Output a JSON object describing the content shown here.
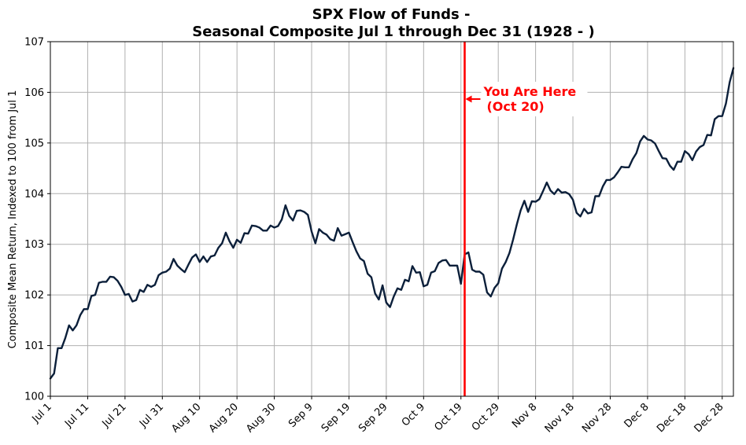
{
  "chart_data": {
    "type": "line",
    "title_line1": "SPX Flow of Funds -",
    "title_line2": "Seasonal Composite Jul 1 through Dec 31 (1928 - )",
    "ylabel": "Composite Mean Return, Indexed to 100 from Jul 1",
    "xlabel": "",
    "ylim": [
      100,
      107
    ],
    "yticks": [
      "100",
      "101",
      "102",
      "103",
      "104",
      "105",
      "106",
      "107"
    ],
    "xticks": [
      "Jul 1",
      "Jul 11",
      "Jul 21",
      "Jul 31",
      "Aug 10",
      "Aug 20",
      "Aug 30",
      "Sep 9",
      "Sep 19",
      "Sep 29",
      "Oct 9",
      "Oct 19",
      "Oct 29",
      "Nov 8",
      "Nov 18",
      "Nov 28",
      "Dec 8",
      "Dec 18",
      "Dec 28"
    ],
    "grid": true,
    "marker": {
      "x_index": 111,
      "label_line1": "You Are Here",
      "label_line2": "(Oct 20)",
      "color": "#ff0000"
    },
    "line_color": "#0b1f3a",
    "values": [
      100.35,
      100.45,
      100.95,
      100.95,
      101.15,
      101.4,
      101.3,
      101.4,
      101.6,
      101.72,
      101.72,
      101.98,
      102.0,
      102.24,
      102.26,
      102.26,
      102.36,
      102.35,
      102.28,
      102.16,
      102.0,
      102.02,
      101.87,
      101.9,
      102.1,
      102.06,
      102.2,
      102.16,
      102.2,
      102.39,
      102.44,
      102.46,
      102.52,
      102.71,
      102.58,
      102.51,
      102.45,
      102.6,
      102.74,
      102.8,
      102.65,
      102.76,
      102.65,
      102.76,
      102.78,
      102.93,
      103.02,
      103.23,
      103.06,
      102.93,
      103.09,
      103.03,
      103.22,
      103.21,
      103.37,
      103.36,
      103.33,
      103.27,
      103.27,
      103.37,
      103.33,
      103.36,
      103.49,
      103.77,
      103.56,
      103.47,
      103.66,
      103.67,
      103.64,
      103.58,
      103.25,
      103.02,
      103.3,
      103.23,
      103.19,
      103.1,
      103.07,
      103.32,
      103.17,
      103.2,
      103.23,
      103.04,
      102.86,
      102.72,
      102.67,
      102.42,
      102.35,
      102.03,
      101.91,
      102.19,
      101.85,
      101.76,
      101.97,
      102.13,
      102.1,
      102.3,
      102.27,
      102.57,
      102.44,
      102.45,
      102.17,
      102.2,
      102.44,
      102.47,
      102.63,
      102.68,
      102.69,
      102.58,
      102.58,
      102.58,
      102.22,
      102.8,
      102.84,
      102.5,
      102.46,
      102.46,
      102.4,
      102.05,
      101.97,
      102.14,
      102.23,
      102.52,
      102.65,
      102.83,
      103.1,
      103.4,
      103.67,
      103.86,
      103.64,
      103.85,
      103.84,
      103.89,
      104.05,
      104.22,
      104.06,
      103.99,
      104.09,
      104.02,
      104.03,
      103.99,
      103.88,
      103.62,
      103.55,
      103.7,
      103.61,
      103.63,
      103.95,
      103.95,
      104.14,
      104.27,
      104.27,
      104.32,
      104.42,
      104.53,
      104.52,
      104.52,
      104.68,
      104.8,
      105.03,
      105.14,
      105.07,
      105.05,
      104.99,
      104.84,
      104.7,
      104.69,
      104.55,
      104.47,
      104.63,
      104.63,
      104.84,
      104.78,
      104.66,
      104.83,
      104.92,
      104.96,
      105.16,
      105.15,
      105.47,
      105.53,
      105.53,
      105.78,
      106.2,
      106.48
    ]
  }
}
